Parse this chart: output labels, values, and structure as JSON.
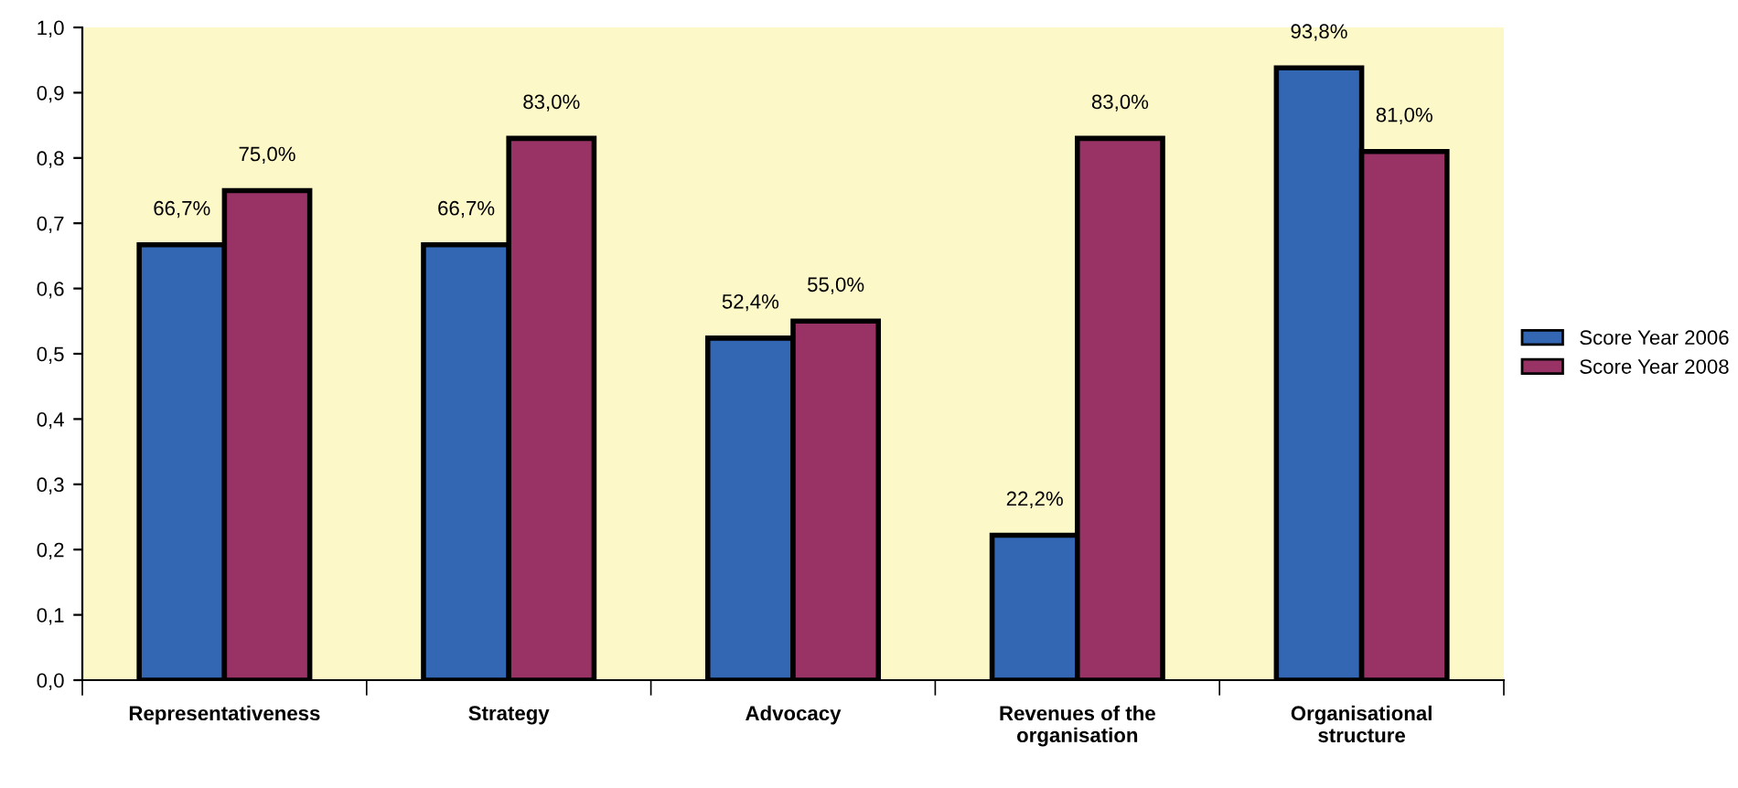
{
  "chart_data": {
    "type": "bar",
    "categories": [
      "Representativeness",
      "Strategy",
      "Advocacy",
      "Revenues of the\norganisation",
      "Organisational\nstructure"
    ],
    "series": [
      {
        "name": "Score Year 2006",
        "color": "#3366b3",
        "values": [
          0.667,
          0.667,
          0.524,
          0.222,
          0.938
        ],
        "value_labels": [
          "66,7%",
          "66,7%",
          "52,4%",
          "22,2%",
          "93,8%"
        ]
      },
      {
        "name": "Score Year 2008",
        "color": "#993366",
        "values": [
          0.75,
          0.83,
          0.55,
          0.83,
          0.81
        ],
        "value_labels": [
          "75,0%",
          "83,0%",
          "55,0%",
          "83,0%",
          "81,0%"
        ]
      }
    ],
    "ylim": [
      0,
      1
    ],
    "yticks": [
      {
        "value": 0,
        "label": "0,0"
      },
      {
        "value": 0.1,
        "label": "0,1"
      },
      {
        "value": 0.2,
        "label": "0,2"
      },
      {
        "value": 0.3,
        "label": "0,3"
      },
      {
        "value": 0.4,
        "label": "0,4"
      },
      {
        "value": 0.5,
        "label": "0,5"
      },
      {
        "value": 0.6,
        "label": "0,6"
      },
      {
        "value": 0.7,
        "label": "0,7"
      },
      {
        "value": 0.8,
        "label": "0,8"
      },
      {
        "value": 0.9,
        "label": "0,9"
      },
      {
        "value": 1,
        "label": "1,0"
      }
    ],
    "grid": false,
    "legend": "right"
  }
}
